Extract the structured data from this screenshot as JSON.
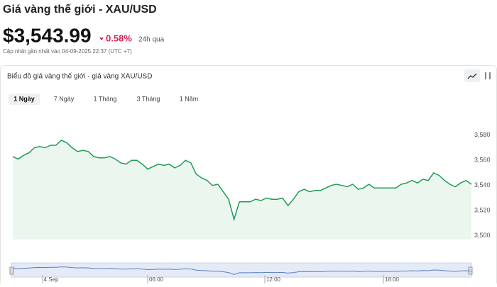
{
  "header": {
    "title": "Giá vàng thế giới - XAU/USD",
    "price": "$3,543.99",
    "change": "0.58%",
    "period": "24h qua",
    "updated": "Cập nhật gần nhất vào 04-09-2025 22:37 (UTC +7)"
  },
  "card": {
    "title": "Biểu đồ giá vàng thế giới - giá vàng XAU/USD",
    "tabs": [
      "1 Ngày",
      "7 Ngày",
      "1 Tháng",
      "3 Tháng",
      "1 Năm"
    ]
  },
  "chart_data": {
    "type": "line",
    "color": "#1f9d55",
    "values": [
      3563,
      3561,
      3564,
      3566,
      3570,
      3571,
      3570,
      3572,
      3572,
      3576,
      3574,
      3570,
      3567,
      3568,
      3567,
      3563,
      3562,
      3562,
      3563,
      3561,
      3558,
      3557,
      3560,
      3560,
      3557,
      3553,
      3555,
      3557,
      3556,
      3557,
      3554,
      3556,
      3560,
      3558,
      3549,
      3546,
      3544,
      3540,
      3541,
      3535,
      3529,
      3513,
      3527,
      3527,
      3527,
      3529,
      3528,
      3530,
      3529,
      3529,
      3530,
      3524,
      3529,
      3535,
      3537,
      3535,
      3536,
      3536,
      3538,
      3540,
      3541,
      3540,
      3539,
      3541,
      3537,
      3538,
      3541,
      3538,
      3538,
      3538,
      3538,
      3538,
      3541,
      3542,
      3544,
      3542,
      3545,
      3544,
      3550,
      3548,
      3544,
      3541,
      3539,
      3542,
      3544,
      3541
    ],
    "ylim": [
      3497,
      3603
    ],
    "yticks": [
      {
        "value": 3500,
        "label": "3,500"
      },
      {
        "value": 3520,
        "label": "3,520"
      },
      {
        "value": 3540,
        "label": "3,540"
      },
      {
        "value": 3560,
        "label": "3,560"
      },
      {
        "value": 3580,
        "label": "3,580"
      }
    ],
    "navigator_labels": [
      "4 Sep",
      "06:00",
      "12:00",
      "18:00"
    ]
  }
}
